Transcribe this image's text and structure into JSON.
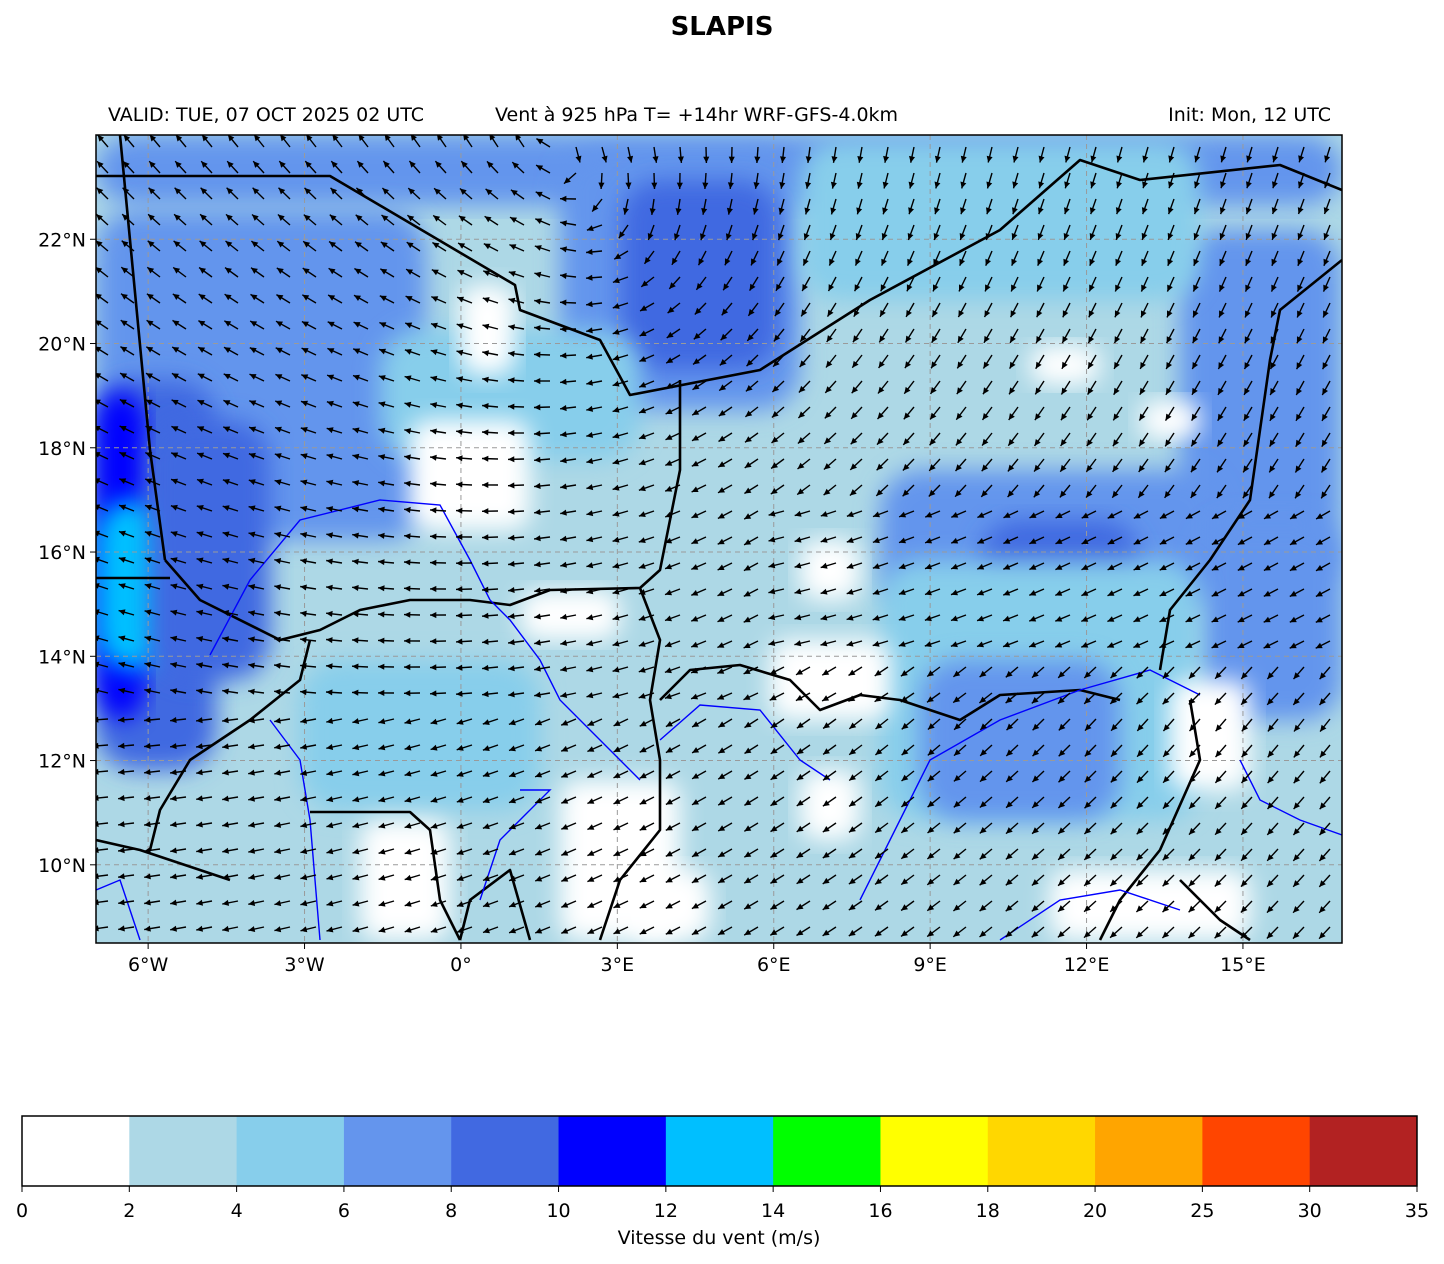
{
  "title": "SLAPIS",
  "subtitle_left": "VALID: TUE, 07 OCT 2025 02 UTC",
  "subtitle_center": "Vent à 925 hPa T= +14hr  WRF-GFS-4.0km",
  "subtitle_right": "Init: Mon, 12 UTC",
  "map": {
    "lon_range": [
      -7.0,
      16.9
    ],
    "lat_range": [
      8.5,
      24.0
    ],
    "lon_ticks": [
      "6°W",
      "3°W",
      "0°",
      "3°E",
      "6°E",
      "9°E",
      "12°E",
      "15°E"
    ],
    "lon_tick_values": [
      -6,
      -3,
      0,
      3,
      6,
      9,
      12,
      15
    ],
    "lat_ticks": [
      "22°N",
      "20°N",
      "18°N",
      "16°N",
      "14°N",
      "12°N",
      "10°N"
    ],
    "lat_tick_values": [
      22,
      20,
      18,
      16,
      14,
      12,
      10
    ],
    "gridlines": true,
    "field": "wind speed at 925 hPa with direction arrows"
  },
  "colorbar": {
    "label": "Vitesse du vent (m/s)",
    "ticks": [
      "0",
      "2",
      "4",
      "6",
      "8",
      "10",
      "12",
      "14",
      "16",
      "18",
      "20",
      "25",
      "30",
      "35"
    ],
    "colors": [
      "#ffffff",
      "#add8e6",
      "#87ceeb",
      "#6495ed",
      "#4169e1",
      "#0000ff",
      "#00bfff",
      "#00ff00",
      "#ffff00",
      "#ffd700",
      "#ffa500",
      "#ff4500",
      "#b22222"
    ]
  }
}
